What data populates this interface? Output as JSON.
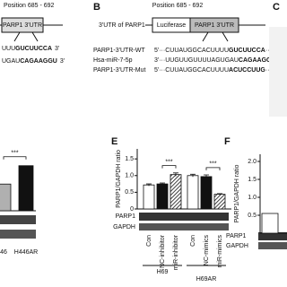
{
  "labels": {
    "b": "B",
    "c": "C",
    "e": "E",
    "f": "F"
  },
  "panel_a": {
    "position": "Position 685 - 692",
    "utr": "PARP1 3'UTR",
    "row1": [
      "UUU",
      "GUCUUCCA",
      "3'"
    ],
    "row2": [
      "UGAU",
      "CAGAAGGU",
      "3'"
    ]
  },
  "panel_b": {
    "title": "3'UTR of PARP1",
    "luciferase": "Luciferase",
    "utr": "PARP1 3'UTR",
    "position": "Position 685 - 692",
    "rows": [
      {
        "name": "PARP1-3'UTR-WT",
        "seq": [
          "5'···CUUAUGGCACUUUU",
          "GUCUUCCA",
          "···3'"
        ]
      },
      {
        "name": "Hsa-miR-7-5p",
        "seq": [
          "3'···UUGUUGUUUUAGUGAU",
          "CAGAAGG",
          "U···5'"
        ]
      },
      {
        "name": "PARP1-3'UTR-Mut",
        "seq": [
          "5'···CUUAUGGCACUUUU",
          "ACUCCUUG",
          "···3'"
        ]
      }
    ]
  },
  "chart_data": [
    {
      "type": "bar",
      "categories": [
        "46",
        "H446AR"
      ],
      "values": [
        0.8,
        1.35
      ],
      "colors": [
        "#b0b0b0",
        "#111111"
      ],
      "ylim": [
        0,
        1.8
      ],
      "yticks": [],
      "annotations": [
        "***"
      ]
    },
    {
      "type": "bar",
      "ylabel": "PARP1/GAPDH ratio",
      "categories": [
        "Con",
        "NC-inhibitor",
        "miR-inhibitor",
        "Con",
        "NC-mimics",
        "miR-mimics"
      ],
      "groups": [
        "H69",
        "H69AR"
      ],
      "values": [
        0.72,
        0.75,
        1.03,
        1.0,
        0.97,
        0.44
      ],
      "errors": [
        0.03,
        0.03,
        0.05,
        0.04,
        0.05,
        0.02
      ],
      "styles": [
        "open",
        "filled",
        "hatched",
        "open",
        "filled",
        "hatched"
      ],
      "ylim": [
        0,
        1.8
      ],
      "yticks": [
        0,
        {
          "value": 0.5,
          "label": "0.5"
        },
        {
          "value": 1,
          "label": "1.0"
        },
        {
          "value": 1.5,
          "label": "1.5"
        }
      ],
      "annotations": [
        "***",
        "***"
      ],
      "blot_labels": [
        "PARP1",
        "GAPDH"
      ]
    },
    {
      "type": "bar",
      "ylabel": "PARP1/GAPDH ratio",
      "categories": [
        null
      ],
      "values": [
        0.55
      ],
      "styles": [
        "open"
      ],
      "ylim": [
        0,
        2.2
      ],
      "yticks": [
        {
          "value": 0.5,
          "label": "0.5"
        },
        {
          "value": 1,
          "label": "1.0"
        },
        {
          "value": 1.5,
          "label": "1.5"
        },
        {
          "value": 2,
          "label": "2.0"
        }
      ],
      "blot_labels": [
        "PARP1",
        "GAPDH"
      ]
    }
  ]
}
